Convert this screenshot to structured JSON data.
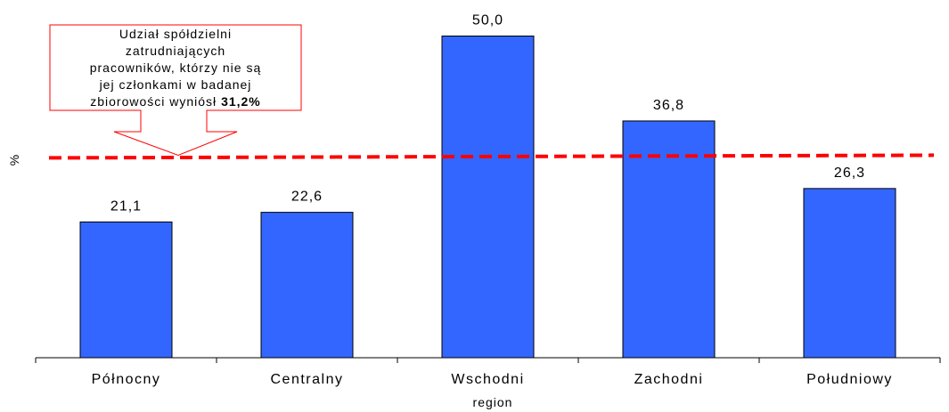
{
  "chart_data": {
    "type": "bar",
    "categories": [
      "Północny",
      "Centralny",
      "Wschodni",
      "Zachodni",
      "Południowy"
    ],
    "values": [
      21.1,
      22.6,
      50.0,
      36.8,
      26.3
    ],
    "value_labels": [
      "21,1",
      "22,6",
      "50,0",
      "36,8",
      "26,3"
    ],
    "xlabel": "region",
    "ylabel": "%",
    "ylim": [
      0,
      50
    ],
    "reference_line": {
      "value": 31.2,
      "color": "#ff0000",
      "style": "dashed"
    },
    "bar_color": "#3366ff",
    "grid": false,
    "legend": "none"
  },
  "callout": {
    "lines": [
      "Udział spółdzielni",
      "zatrudniających",
      "pracowników, którzy nie są",
      "jej członkami w badanej"
    ],
    "last_line_text": "zbiorowości wyniósł ",
    "last_line_bold": "31,2%",
    "border_color": "#ff0000"
  }
}
